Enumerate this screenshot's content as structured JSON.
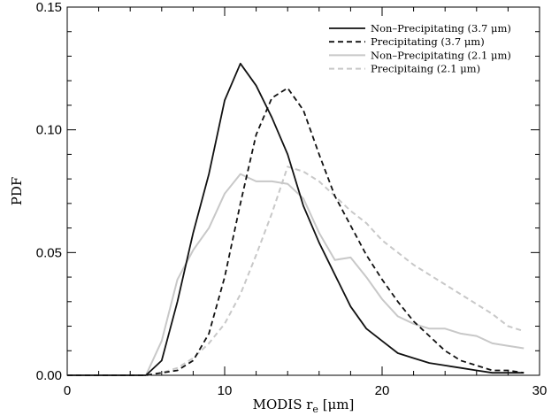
{
  "chart_data": {
    "type": "line",
    "title": "",
    "xlabel": "MODIS r_e [μm]",
    "xlabel_parts": {
      "main": "MODIS r",
      "sub": "e",
      "unit": " [μm]"
    },
    "ylabel": "PDF",
    "xlim": [
      0,
      30
    ],
    "ylim": [
      0,
      0.15
    ],
    "xticks": [
      0,
      10,
      20,
      30
    ],
    "xtick_labels": [
      "0",
      "10",
      "20",
      "30"
    ],
    "yticks": [
      0,
      0.05,
      0.1,
      0.15
    ],
    "ytick_labels": [
      "0.00",
      "0.05",
      "0.10",
      "0.15"
    ],
    "grid": false,
    "legend_position": "top-right",
    "series": [
      {
        "name": "Non–Precipitating (3.7 μm)",
        "color": "#111111",
        "dash": "solid",
        "x": [
          0,
          1,
          2,
          3,
          4,
          5,
          6,
          7,
          8,
          9,
          10,
          11,
          12,
          13,
          14,
          15,
          16,
          17,
          18,
          19,
          20,
          21,
          22,
          23,
          24,
          25,
          26,
          27,
          28,
          29
        ],
        "y": [
          0,
          0,
          0,
          0,
          0,
          0,
          0.006,
          0.03,
          0.058,
          0.082,
          0.112,
          0.127,
          0.118,
          0.105,
          0.09,
          0.069,
          0.054,
          0.041,
          0.028,
          0.019,
          0.014,
          0.009,
          0.007,
          0.005,
          0.004,
          0.003,
          0.002,
          0.001,
          0.001,
          0.001
        ]
      },
      {
        "name": "Precipitating (3.7 μm)",
        "color": "#111111",
        "dash": "dashed",
        "x": [
          0,
          1,
          2,
          3,
          4,
          5,
          6,
          7,
          8,
          9,
          10,
          11,
          12,
          13,
          14,
          15,
          16,
          17,
          18,
          19,
          20,
          21,
          22,
          23,
          24,
          25,
          26,
          27,
          28,
          29
        ],
        "y": [
          0,
          0,
          0,
          0,
          0,
          0,
          0.001,
          0.002,
          0.006,
          0.017,
          0.04,
          0.07,
          0.098,
          0.113,
          0.117,
          0.108,
          0.09,
          0.073,
          0.061,
          0.049,
          0.039,
          0.03,
          0.022,
          0.016,
          0.01,
          0.006,
          0.004,
          0.002,
          0.002,
          0.001
        ]
      },
      {
        "name": "Non–Precipitating (2.1 μm)",
        "color": "#c8c8c8",
        "dash": "solid",
        "x": [
          0,
          1,
          2,
          3,
          4,
          5,
          6,
          7,
          8,
          9,
          10,
          11,
          12,
          13,
          14,
          15,
          16,
          17,
          18,
          19,
          20,
          21,
          22,
          23,
          24,
          25,
          26,
          27,
          28,
          29
        ],
        "y": [
          0,
          0,
          0,
          0,
          0,
          0,
          0.014,
          0.039,
          0.051,
          0.06,
          0.074,
          0.082,
          0.079,
          0.079,
          0.078,
          0.072,
          0.058,
          0.047,
          0.048,
          0.04,
          0.031,
          0.024,
          0.021,
          0.019,
          0.019,
          0.017,
          0.016,
          0.013,
          0.012,
          0.011
        ]
      },
      {
        "name": "Precipitaing (2.1 μm)",
        "color": "#c8c8c8",
        "dash": "dashed",
        "x": [
          0,
          1,
          2,
          3,
          4,
          5,
          6,
          7,
          8,
          9,
          10,
          11,
          12,
          13,
          14,
          15,
          16,
          17,
          18,
          19,
          20,
          21,
          22,
          23,
          24,
          25,
          26,
          27,
          28,
          29
        ],
        "y": [
          0,
          0,
          0,
          0,
          0,
          0,
          0.001,
          0.003,
          0.007,
          0.013,
          0.021,
          0.033,
          0.049,
          0.066,
          0.085,
          0.083,
          0.079,
          0.073,
          0.067,
          0.062,
          0.055,
          0.05,
          0.045,
          0.041,
          0.037,
          0.033,
          0.029,
          0.025,
          0.02,
          0.018
        ]
      }
    ]
  }
}
